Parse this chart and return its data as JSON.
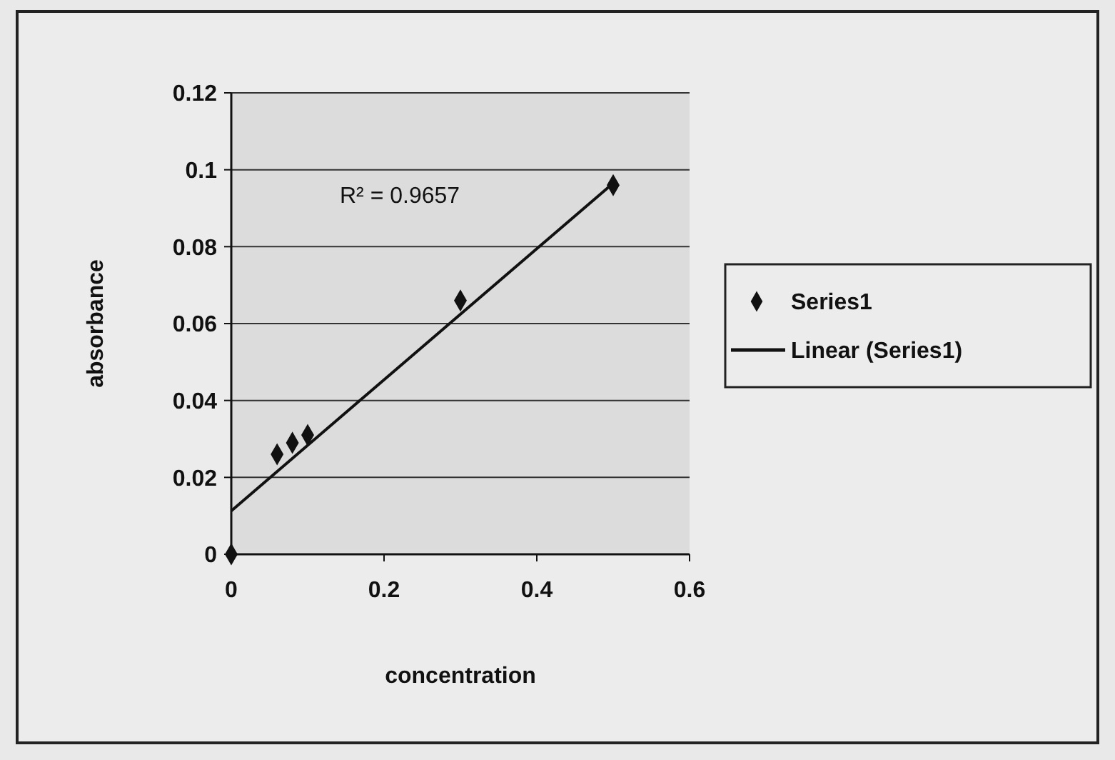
{
  "chart_data": {
    "type": "scatter",
    "xlabel": "concentration",
    "ylabel": "absorbance",
    "xlim": [
      0,
      0.6
    ],
    "xticks": [
      0,
      0.2,
      0.4,
      0.6
    ],
    "ylim": [
      0,
      0.12
    ],
    "yticks": [
      0,
      0.02,
      0.04,
      0.06,
      0.08,
      0.1,
      0.12
    ],
    "grid": "y",
    "legend": "right",
    "annotations": [
      "R² = 0.9657"
    ],
    "series": [
      {
        "name": "Series1",
        "marker": "diamond",
        "color": "#111111",
        "x": [
          0,
          0.06,
          0.08,
          0.1,
          0.3,
          0.5
        ],
        "values": [
          0,
          0.026,
          0.029,
          0.031,
          0.066,
          0.096
        ]
      },
      {
        "name": "Linear (Series1)",
        "type": "line",
        "marker": "none",
        "line_style": "solid",
        "color": "#111111",
        "x": [
          0,
          0.5
        ],
        "values": [
          0.0113,
          0.0965
        ]
      }
    ]
  }
}
